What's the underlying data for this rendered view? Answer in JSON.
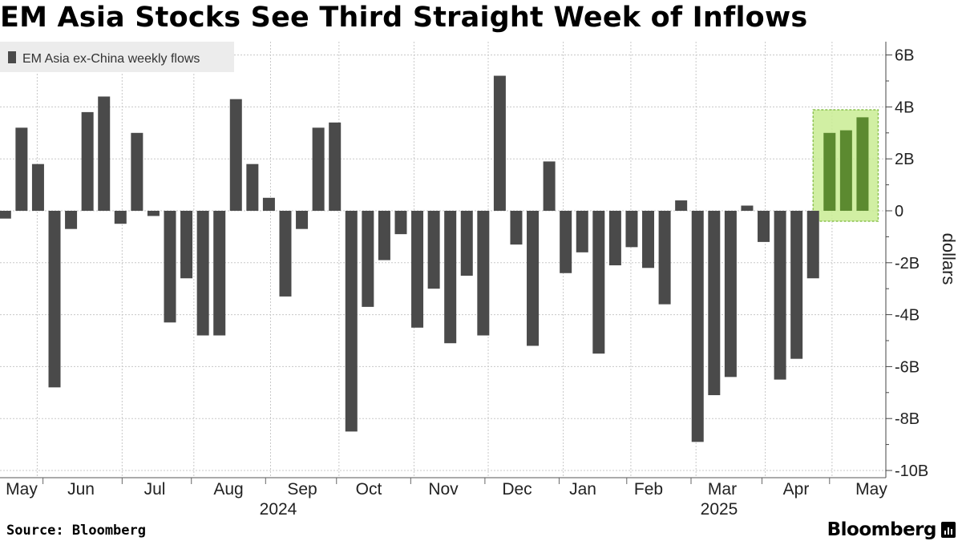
{
  "title": "EM Asia Stocks See Third Straight Week of Inflows",
  "source": "Source: Bloomberg",
  "brand": "Bloomberg",
  "colors": {
    "bar": "#4a4a4a",
    "highlight_bar": "#5c8a30",
    "highlight_box": "#c9ec93",
    "highlight_border": "#8cc24f",
    "legend_bg": "#ececec",
    "grid": "#c8c8c8"
  },
  "chart_data": {
    "type": "bar",
    "title": "EM Asia Stocks See Third Straight Week of Inflows",
    "ylabel": "dollars",
    "ylim": [
      -10,
      6
    ],
    "yunit": "B",
    "yticks": [
      6,
      4,
      2,
      0,
      -2,
      -4,
      -6,
      -8,
      -10
    ],
    "ytick_labels": [
      "6B",
      "4B",
      "2B",
      "0",
      "-2B",
      "-4B",
      "-6B",
      "-8B",
      "-10B"
    ],
    "x_month_labels": [
      "May",
      "Jun",
      "Jul",
      "Aug",
      "Sep",
      "Oct",
      "Nov",
      "Dec",
      "Jan",
      "Feb",
      "Mar",
      "Apr",
      "May"
    ],
    "x_year_labels": [
      "2024",
      "2025"
    ],
    "grid": true,
    "legend_position": "top-left",
    "series": [
      {
        "name": "EM Asia ex-China weekly flows",
        "values": [
          -0.3,
          3.2,
          1.8,
          -6.8,
          -0.7,
          3.8,
          4.4,
          -0.5,
          3.0,
          -0.2,
          -4.3,
          -2.6,
          -4.8,
          -4.8,
          4.3,
          1.8,
          0.5,
          -3.3,
          -0.7,
          3.2,
          3.4,
          -8.5,
          -3.7,
          -1.9,
          -0.9,
          -4.5,
          -3.0,
          -5.1,
          -2.5,
          -4.8,
          5.2,
          -1.3,
          -5.2,
          1.9,
          -2.4,
          -1.6,
          -5.5,
          -2.1,
          -1.4,
          -2.2,
          -3.6,
          0.4,
          -8.9,
          -7.1,
          -6.4,
          0.2,
          -1.2,
          -6.5,
          -5.7,
          -2.6,
          3.0,
          3.1,
          3.6
        ]
      }
    ],
    "highlight": {
      "first_index": 50,
      "last_index": 52,
      "label": "Third straight week of inflows"
    }
  }
}
